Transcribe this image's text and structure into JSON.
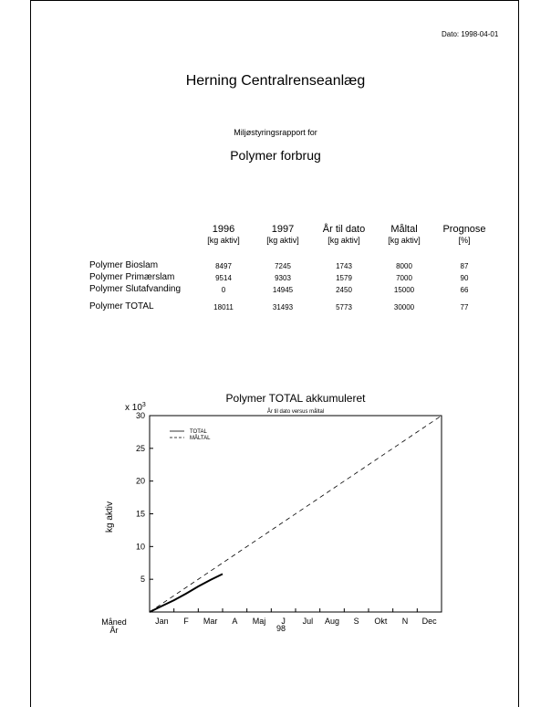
{
  "header": {
    "date": "Dato: 1998-04-01",
    "title": "Herning Centralrenseanlæg",
    "subtitle": "Miljøstyringsrapport for",
    "subject": "Polymer forbrug"
  },
  "table": {
    "columns": [
      {
        "line1": "1996",
        "line2": "[kg aktiv]"
      },
      {
        "line1": "1997",
        "line2": "[kg aktiv]"
      },
      {
        "line1": "År til dato",
        "line2": "[kg aktiv]"
      },
      {
        "line1": "Måltal",
        "line2": "[kg aktiv]"
      },
      {
        "line1": "Prognose",
        "line2": "[%]"
      }
    ],
    "rows": [
      {
        "label": "Polymer Bioslam",
        "values": [
          "8497",
          "7245",
          "1743",
          "8000",
          "87"
        ]
      },
      {
        "label": "Polymer Primærslam",
        "values": [
          "9514",
          "9303",
          "1579",
          "7000",
          "90"
        ]
      },
      {
        "label": "Polymer Slutafvanding",
        "values": [
          "0",
          "14945",
          "2450",
          "15000",
          "66"
        ]
      },
      {
        "label": "Polymer TOTAL",
        "values": [
          "18011",
          "31493",
          "5773",
          "30000",
          "77"
        ]
      }
    ]
  },
  "chart_data": {
    "type": "line",
    "title": "Polymer TOTAL akkumuleret",
    "subtitle": "År til dato versus måltal",
    "ylabel": "kg aktiv",
    "yscale_label": "x 10",
    "yscale_exp": "3",
    "ylim": [
      0,
      30
    ],
    "yticks": [
      "5",
      "10",
      "15",
      "20",
      "25",
      "30"
    ],
    "ytick_values": [
      5,
      10,
      15,
      20,
      25,
      30
    ],
    "xaxis_row1_label": "Måned",
    "xaxis_row2_label": "År",
    "months": [
      "Jan",
      "F",
      "Mar",
      "A",
      "Maj",
      "J",
      "Jul",
      "Aug",
      "S",
      "Okt",
      "N",
      "Dec"
    ],
    "year_label": "98",
    "xlim": [
      0,
      12
    ],
    "legend": [
      {
        "name": "TOTAL",
        "style": "solid"
      },
      {
        "name": "MÅLTAL",
        "style": "dashed"
      }
    ],
    "series": [
      {
        "name": "TOTAL",
        "x": [
          0,
          0.5,
          1.0,
          1.5,
          2.0,
          2.5,
          3.0
        ],
        "y": [
          0,
          0.9,
          1.8,
          2.8,
          3.9,
          4.9,
          5.8
        ]
      },
      {
        "name": "MÅLTAL",
        "x": [
          0,
          12
        ],
        "y": [
          0,
          30
        ]
      }
    ]
  }
}
